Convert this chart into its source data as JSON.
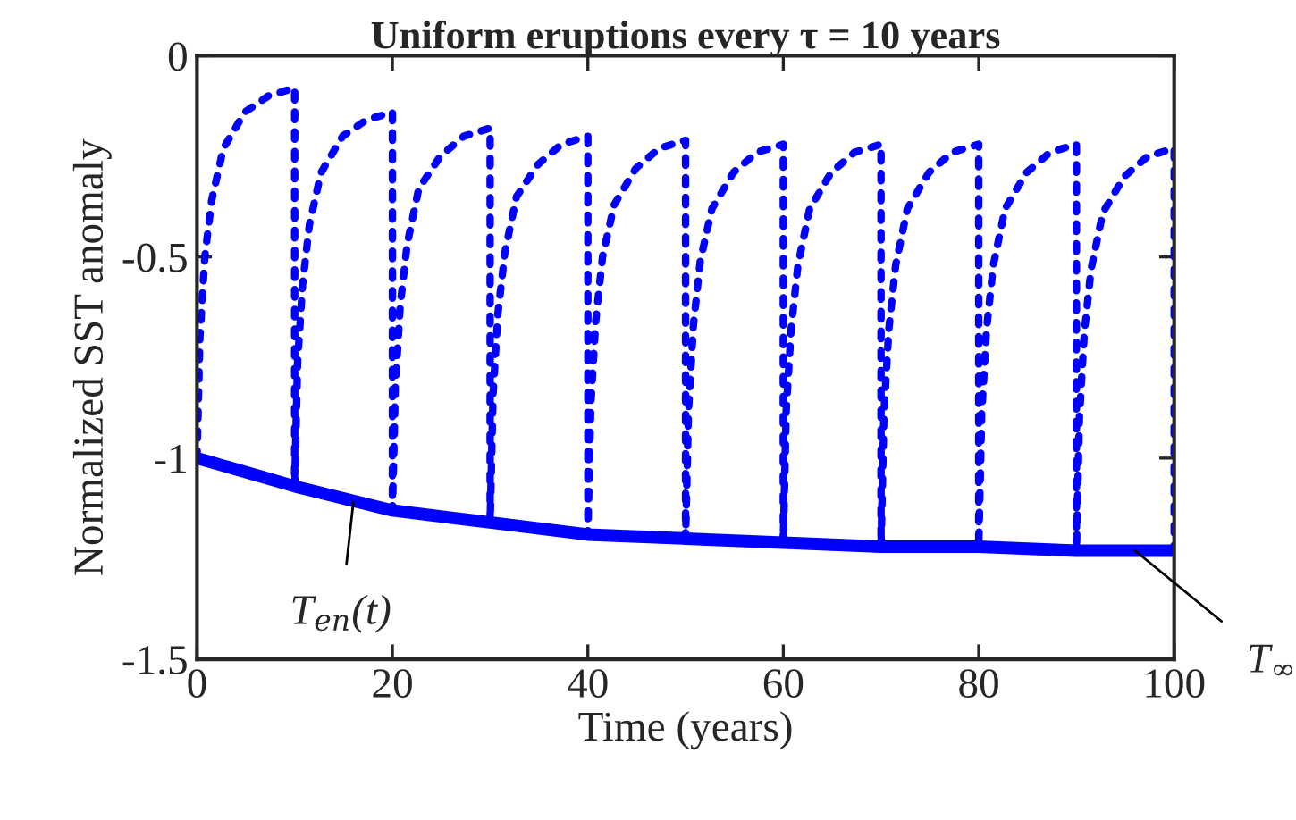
{
  "chart_data": {
    "type": "line",
    "title": "Uniform eruptions every τ = 10 years",
    "xlabel": "Time (years)",
    "ylabel": "Normalized SST anomaly",
    "xlim": [
      0,
      100
    ],
    "xticks": [
      0,
      20,
      40,
      60,
      80,
      100
    ],
    "ylim": [
      -1.5,
      0
    ],
    "yticks": [
      -1.5,
      -1,
      -0.5,
      0
    ],
    "grid": false,
    "legend": false,
    "marker": "none",
    "series": [
      {
        "color": "#0000ff",
        "line_style": "dotted",
        "x": [
          0,
          0.3,
          0.8,
          1.5,
          2.7,
          4.9,
          7.3,
          10,
          10,
          10.3,
          10.8,
          11.5,
          12.7,
          14.9,
          17.3,
          20,
          20,
          20.3,
          20.8,
          21.5,
          22.7,
          24.9,
          27.3,
          30,
          30,
          30.3,
          30.8,
          31.5,
          32.7,
          34.9,
          37.3,
          40,
          40,
          40.3,
          40.8,
          41.5,
          42.7,
          44.9,
          47.3,
          50,
          50,
          50.3,
          50.8,
          51.5,
          52.7,
          54.9,
          57.3,
          60,
          60,
          60.3,
          60.8,
          61.5,
          62.7,
          64.9,
          67.3,
          70,
          70,
          70.3,
          70.8,
          71.5,
          72.7,
          74.9,
          77.3,
          80,
          80,
          80.3,
          80.8,
          81.5,
          82.7,
          84.9,
          87.3,
          90,
          90,
          90.3,
          90.8,
          91.5,
          92.7,
          94.9,
          97.3,
          100,
          100
        ],
        "values": [
          -1,
          -0.7,
          -0.5,
          -0.36,
          -0.23,
          -0.14,
          -0.1,
          -0.08,
          -1.07,
          -0.76,
          -0.57,
          -0.42,
          -0.29,
          -0.2,
          -0.16,
          -0.14,
          -1.13,
          -0.82,
          -0.62,
          -0.47,
          -0.33,
          -0.25,
          -0.2,
          -0.18,
          -1.16,
          -0.84,
          -0.64,
          -0.49,
          -0.35,
          -0.27,
          -0.22,
          -0.2,
          -1.19,
          -0.87,
          -0.66,
          -0.5,
          -0.37,
          -0.28,
          -0.23,
          -0.21,
          -1.2,
          -0.88,
          -0.67,
          -0.51,
          -0.38,
          -0.29,
          -0.24,
          -0.22,
          -1.21,
          -0.88,
          -0.68,
          -0.52,
          -0.38,
          -0.29,
          -0.24,
          -0.22,
          -1.22,
          -0.89,
          -0.68,
          -0.52,
          -0.38,
          -0.29,
          -0.24,
          -0.22,
          -1.22,
          -0.89,
          -0.68,
          -0.52,
          -0.38,
          -0.29,
          -0.24,
          -0.22,
          -1.23,
          -0.9,
          -0.69,
          -0.53,
          -0.39,
          -0.3,
          -0.25,
          -0.23,
          -1.23
        ]
      },
      {
        "color": "#0000ff",
        "line_style": "solid",
        "x": [
          0,
          10,
          20,
          30,
          40,
          50,
          60,
          70,
          80,
          90,
          100
        ],
        "values": [
          -1,
          -1.07,
          -1.13,
          -1.16,
          -1.19,
          -1.2,
          -1.21,
          -1.22,
          -1.22,
          -1.23,
          -1.23
        ]
      }
    ],
    "annotations": [
      {
        "text": "T$_{en}$(t)",
        "x": 16,
        "y": -1.11
      },
      {
        "text": "T$_{∞}$",
        "x": 96,
        "y": -1.23
      }
    ]
  }
}
